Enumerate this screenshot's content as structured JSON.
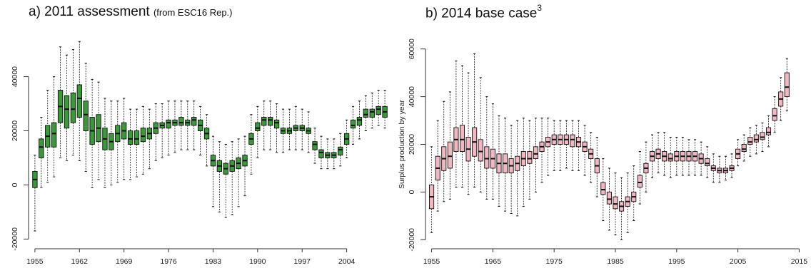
{
  "panels": {
    "a": {
      "prefix": "a) 2011 assessment",
      "note": "(from ESC16 Rep.)"
    },
    "b": {
      "prefix": "b) 2014 base case",
      "sup": "3"
    }
  },
  "colors": {
    "box_a": "#3a9a3a",
    "box_b": "#f2b8c2",
    "stroke": "#111111"
  },
  "chart_data": [
    {
      "type": "box",
      "title": "a) 2011 assessment (from ESC16 Rep.)",
      "xlabel": "",
      "ylabel": "",
      "xlim": [
        1954,
        2011
      ],
      "ylim": [
        -22000,
        52000
      ],
      "x_ticks": [
        1955,
        1962,
        1969,
        1976,
        1983,
        1990,
        1997,
        2004
      ],
      "x_tick_labels": [
        "1955",
        "1962",
        "1969",
        "1976",
        "1983",
        "1990",
        "1997",
        "2004"
      ],
      "y_ticks": [
        -20000,
        0,
        20000,
        40000
      ],
      "y_tick_labels": [
        "-20000",
        "0",
        "20000",
        "40000"
      ],
      "x": [
        1955,
        1956,
        1957,
        1958,
        1959,
        1960,
        1961,
        1962,
        1963,
        1964,
        1965,
        1966,
        1967,
        1968,
        1969,
        1970,
        1971,
        1972,
        1973,
        1974,
        1975,
        1976,
        1977,
        1978,
        1979,
        1980,
        1981,
        1982,
        1983,
        1984,
        1985,
        1986,
        1987,
        1988,
        1989,
        1990,
        1991,
        1992,
        1993,
        1994,
        1995,
        1996,
        1997,
        1998,
        1999,
        2000,
        2001,
        2002,
        2003,
        2004,
        2005,
        2006,
        2007,
        2008,
        2009,
        2010
      ],
      "median": [
        2000,
        14000,
        18000,
        19000,
        29000,
        28000,
        28000,
        32000,
        26000,
        20000,
        21000,
        17000,
        16000,
        19000,
        20000,
        17000,
        17000,
        18000,
        19000,
        21000,
        22000,
        23000,
        23000,
        23000,
        23000,
        24000,
        22000,
        19000,
        9000,
        7000,
        6000,
        7000,
        8000,
        9000,
        17000,
        21000,
        24000,
        24000,
        23000,
        20000,
        20000,
        21000,
        21000,
        20000,
        15000,
        12000,
        11000,
        11000,
        13000,
        17000,
        22000,
        24000,
        26000,
        27000,
        28000,
        27000
      ],
      "q1": [
        -1000,
        10000,
        14000,
        14000,
        23000,
        21000,
        23000,
        25000,
        20000,
        15000,
        16000,
        13000,
        13000,
        16000,
        17000,
        15000,
        15000,
        16000,
        17000,
        19000,
        21000,
        21000,
        22000,
        22000,
        22000,
        22000,
        20000,
        17000,
        7000,
        5000,
        4000,
        5000,
        6000,
        7000,
        15000,
        20000,
        22000,
        22000,
        21000,
        19000,
        19000,
        20000,
        20000,
        19000,
        13000,
        10000,
        10000,
        10000,
        11000,
        15000,
        21000,
        22000,
        25000,
        25000,
        26000,
        25000
      ],
      "q3": [
        5000,
        17000,
        22000,
        23000,
        35000,
        33000,
        34000,
        37000,
        31000,
        25000,
        26000,
        21000,
        19000,
        22000,
        23000,
        20000,
        20000,
        21000,
        21000,
        23000,
        23000,
        24000,
        24000,
        25000,
        24000,
        25000,
        24000,
        21000,
        11000,
        9000,
        8000,
        9000,
        10000,
        11000,
        19000,
        23000,
        25000,
        25000,
        24000,
        21000,
        21000,
        22000,
        22000,
        21000,
        16000,
        13000,
        12000,
        12000,
        14000,
        19000,
        24000,
        25000,
        28000,
        28000,
        29000,
        29000
      ],
      "lo": [
        -17000,
        -1000,
        1000,
        3000,
        10000,
        9000,
        11000,
        9000,
        5000,
        -1000,
        2000,
        -1000,
        0,
        1000,
        2000,
        2000,
        3000,
        4000,
        6000,
        9000,
        10000,
        11000,
        12000,
        13000,
        13000,
        13000,
        11000,
        7000,
        -8000,
        -10000,
        -12000,
        -11000,
        -8000,
        -4000,
        4000,
        10000,
        13000,
        13000,
        12000,
        12000,
        13000,
        13000,
        13000,
        12000,
        8000,
        6000,
        6000,
        6000,
        7000,
        10000,
        15000,
        17000,
        20000,
        21000,
        22000,
        21000
      ],
      "hi": [
        11000,
        25000,
        35000,
        40000,
        51000,
        48000,
        50000,
        53000,
        45000,
        39000,
        38000,
        32000,
        31000,
        31000,
        32000,
        28000,
        28000,
        29000,
        28000,
        30000,
        30000,
        31000,
        31000,
        31000,
        31000,
        31000,
        29000,
        26000,
        18000,
        16000,
        15000,
        16000,
        17000,
        18000,
        26000,
        29000,
        31000,
        31000,
        30000,
        28000,
        28000,
        29000,
        28000,
        27000,
        21000,
        18000,
        17000,
        17000,
        19000,
        24000,
        29000,
        31000,
        33000,
        34000,
        35000,
        35000
      ]
    },
    {
      "type": "box",
      "title": "b) 2014 base case3",
      "xlabel": "",
      "ylabel": "Surplus production by year",
      "xlim": [
        1954,
        2016
      ],
      "ylim": [
        -22000,
        62000
      ],
      "x_ticks": [
        1955,
        1965,
        1975,
        1985,
        1995,
        2005,
        2015
      ],
      "x_tick_labels": [
        "1955",
        "1965",
        "1975",
        "1985",
        "1995",
        "2005",
        "2015"
      ],
      "y_ticks": [
        -20000,
        0,
        20000,
        40000,
        60000
      ],
      "y_tick_labels": [
        "-20000",
        "0",
        "20000",
        "40000",
        "60000"
      ],
      "x": [
        1955,
        1956,
        1957,
        1958,
        1959,
        1960,
        1961,
        1962,
        1963,
        1964,
        1965,
        1966,
        1967,
        1968,
        1969,
        1970,
        1971,
        1972,
        1973,
        1974,
        1975,
        1976,
        1977,
        1978,
        1979,
        1980,
        1981,
        1982,
        1983,
        1984,
        1985,
        1986,
        1987,
        1988,
        1989,
        1990,
        1991,
        1992,
        1993,
        1994,
        1995,
        1996,
        1997,
        1998,
        1999,
        2000,
        2001,
        2002,
        2003,
        2004,
        2005,
        2006,
        2007,
        2008,
        2009,
        2010,
        2011,
        2012,
        2013
      ],
      "median": [
        -2000,
        10000,
        14000,
        15000,
        22000,
        22000,
        18000,
        21000,
        17000,
        14000,
        14000,
        12000,
        12000,
        11000,
        12000,
        14000,
        14000,
        16000,
        19000,
        21000,
        22000,
        22000,
        22000,
        22000,
        21000,
        19000,
        16000,
        11000,
        1000,
        -3000,
        -5000,
        -6000,
        -4000,
        -2000,
        4000,
        10000,
        15000,
        16000,
        15000,
        14000,
        15000,
        15000,
        15000,
        15000,
        14000,
        12000,
        10000,
        9000,
        9000,
        10000,
        16000,
        18000,
        21000,
        22000,
        23000,
        25000,
        32000,
        39000,
        44000
      ],
      "q1": [
        -7000,
        5000,
        9000,
        10000,
        17000,
        17000,
        13000,
        15000,
        13000,
        10000,
        10000,
        8000,
        8000,
        8000,
        9000,
        11000,
        12000,
        14000,
        17000,
        19000,
        20000,
        20000,
        20000,
        19000,
        19000,
        17000,
        14000,
        8000,
        -1000,
        -5000,
        -7000,
        -8000,
        -6000,
        -4000,
        2000,
        8000,
        13000,
        14000,
        13000,
        13000,
        13000,
        13000,
        13000,
        13000,
        12000,
        11000,
        9000,
        8000,
        8000,
        9000,
        14000,
        17000,
        20000,
        21000,
        22000,
        24000,
        30000,
        36000,
        40000
      ],
      "q3": [
        3000,
        15000,
        19000,
        21000,
        27000,
        28000,
        23000,
        27000,
        22000,
        19000,
        18000,
        16000,
        16000,
        14000,
        15000,
        17000,
        17000,
        19000,
        21000,
        23000,
        24000,
        24000,
        24000,
        24000,
        23000,
        21000,
        18000,
        14000,
        4000,
        0,
        -2000,
        -4000,
        -2000,
        0,
        7000,
        12000,
        17000,
        18000,
        17000,
        16000,
        17000,
        17000,
        17000,
        17000,
        16000,
        14000,
        11000,
        10000,
        10000,
        11000,
        18000,
        20000,
        23000,
        24000,
        25000,
        27000,
        35000,
        42000,
        50000
      ],
      "lo": [
        -17000,
        -8000,
        -4000,
        -3000,
        2000,
        2000,
        -1000,
        2000,
        0,
        -3000,
        -3000,
        -6000,
        -8000,
        -9000,
        -10000,
        -6000,
        -3000,
        0,
        4000,
        7000,
        9000,
        9000,
        10000,
        9000,
        9000,
        7000,
        4000,
        -2000,
        -12000,
        -16000,
        -18000,
        -20000,
        -17000,
        -12000,
        -5000,
        0,
        6000,
        8000,
        7000,
        6000,
        7000,
        7000,
        7000,
        7000,
        7000,
        6000,
        4000,
        4000,
        5000,
        6000,
        11000,
        13000,
        15000,
        16000,
        17000,
        19000,
        25000,
        30000,
        34000
      ],
      "hi": [
        19000,
        30000,
        38000,
        42000,
        55000,
        53000,
        50000,
        58000,
        48000,
        40000,
        37000,
        32000,
        31000,
        28000,
        30000,
        31000,
        30000,
        31000,
        31000,
        31000,
        30000,
        30000,
        30000,
        30000,
        30000,
        28000,
        25000,
        23000,
        14000,
        10000,
        8000,
        6000,
        8000,
        11000,
        17000,
        21000,
        24000,
        25000,
        25000,
        23000,
        23000,
        23000,
        22000,
        22000,
        21000,
        19000,
        16000,
        15000,
        15000,
        16000,
        22000,
        24000,
        27000,
        28000,
        29000,
        32000,
        40000,
        48000,
        56000
      ]
    }
  ]
}
